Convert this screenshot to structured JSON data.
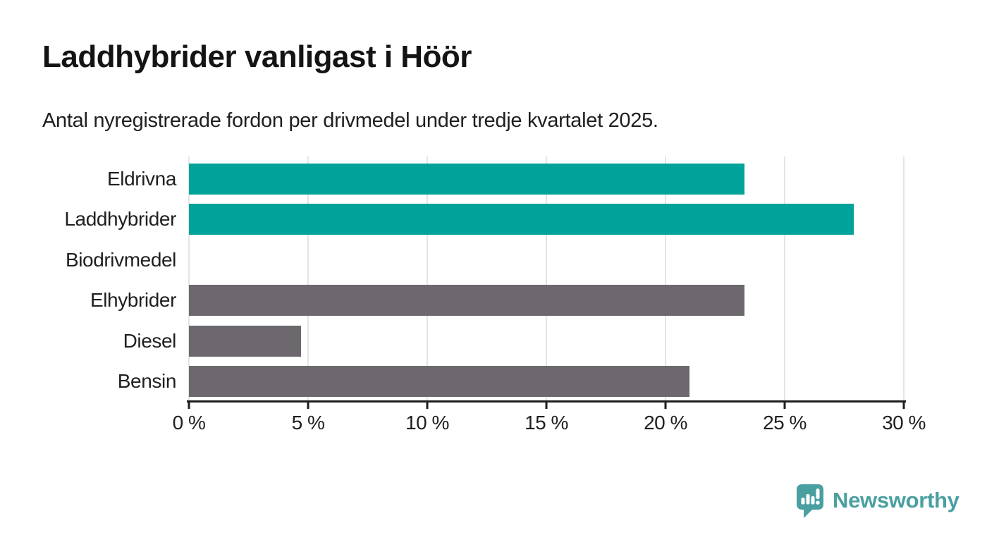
{
  "chart_data": {
    "type": "bar",
    "orientation": "horizontal",
    "title": "Laddhybrider vanligast i Höör",
    "subtitle": "Antal nyregistrerade fordon per drivmedel under tredje kvartalet 2025.",
    "categories": [
      "Eldrivna",
      "Laddhybrider",
      "Biodrivmedel",
      "Elhybrider",
      "Diesel",
      "Bensin"
    ],
    "values": [
      23.3,
      27.9,
      0,
      23.3,
      4.7,
      21.0
    ],
    "unit": "%",
    "xlim": [
      0,
      30
    ],
    "x_ticks": [
      0,
      5,
      10,
      15,
      20,
      25,
      30
    ],
    "x_tick_labels": [
      "0 %",
      "5 %",
      "10 %",
      "15 %",
      "20 %",
      "25 %",
      "30 %"
    ],
    "bar_colors": [
      "#00a29a",
      "#00a29a",
      "#6d686e",
      "#6d686e",
      "#6d686e",
      "#6d686e"
    ],
    "grid": true,
    "legend": "none"
  },
  "colors": {
    "accent_teal": "#00a29a",
    "neutral_gray": "#6d686e",
    "gridline": "#e4e4e4",
    "axis": "#1d1d1d",
    "text": "#1f1f1f",
    "brand_teal": "#4a9fa0",
    "background": "#ffffff"
  },
  "footer": {
    "brand": "Newsworthy"
  }
}
